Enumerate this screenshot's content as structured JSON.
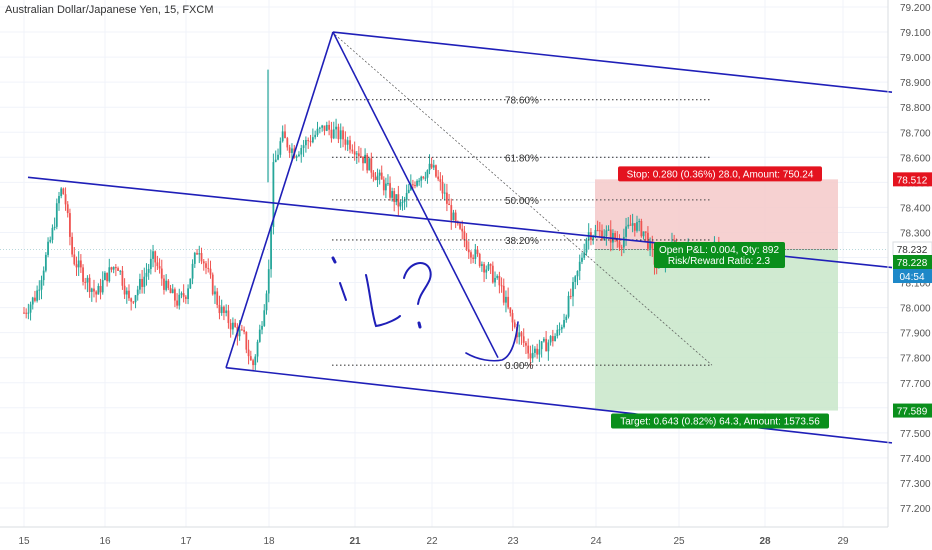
{
  "header": {
    "title": "Australian Dollar/Japanese Yen, 15, FXCM"
  },
  "colors": {
    "up": "#26a69a",
    "down": "#ef5350",
    "trend": "#1f1fb8",
    "stop_zone": "#f5c9c9",
    "target_zone": "#c8e6c9",
    "stop_badge": "#e4131f",
    "target_badge": "#0a8f1c",
    "price_badge": "#0a8f1c",
    "countdown_badge": "#1e88c8"
  },
  "chart_data": {
    "type": "candlestick",
    "title": "Australian Dollar/Japanese Yen, 15, FXCM",
    "xaxis": {
      "labels": [
        "15",
        "16",
        "17",
        "18",
        "21",
        "22",
        "23",
        "24",
        "25",
        "28",
        "29"
      ],
      "bold": [
        "21",
        "28"
      ]
    },
    "yaxis": {
      "labels": [
        "79.200",
        "79.100",
        "79.000",
        "78.900",
        "78.800",
        "78.700",
        "78.600",
        "78.500",
        "78.400",
        "78.300",
        "78.200",
        "78.100",
        "78.000",
        "77.900",
        "77.800",
        "77.700",
        "77.600",
        "77.500",
        "77.400",
        "77.300",
        "77.200"
      ],
      "range": [
        77.16,
        79.24
      ],
      "position": "right"
    },
    "price_path": [
      [
        15.0,
        77.98
      ],
      [
        15.15,
        78.05
      ],
      [
        15.35,
        78.3
      ],
      [
        15.45,
        78.47
      ],
      [
        15.5,
        78.45
      ],
      [
        15.6,
        78.2
      ],
      [
        15.75,
        78.12
      ],
      [
        15.9,
        78.05
      ],
      [
        16.0,
        78.12
      ],
      [
        16.15,
        78.18
      ],
      [
        16.3,
        78.02
      ],
      [
        16.45,
        78.1
      ],
      [
        16.6,
        78.2
      ],
      [
        16.75,
        78.08
      ],
      [
        16.9,
        78.02
      ],
      [
        17.0,
        78.06
      ],
      [
        17.15,
        78.25
      ],
      [
        17.25,
        78.15
      ],
      [
        17.4,
        78.0
      ],
      [
        17.55,
        77.93
      ],
      [
        17.7,
        77.88
      ],
      [
        17.8,
        77.76
      ],
      [
        17.9,
        77.92
      ],
      [
        18.0,
        78.15
      ],
      [
        18.05,
        78.55
      ],
      [
        18.15,
        78.68
      ],
      [
        18.3,
        78.62
      ],
      [
        18.5,
        78.68
      ],
      [
        18.65,
        78.72
      ],
      [
        18.85,
        78.68
      ],
      [
        19.0,
        78.64
      ],
      [
        19.15,
        78.58
      ],
      [
        19.4,
        78.48
      ],
      [
        19.6,
        78.4
      ],
      [
        19.8,
        78.52
      ],
      [
        20.0,
        78.56
      ],
      [
        20.15,
        78.45
      ],
      [
        20.3,
        78.32
      ],
      [
        20.5,
        78.22
      ],
      [
        20.7,
        78.15
      ],
      [
        20.85,
        78.08
      ],
      [
        21.0,
        77.93
      ],
      [
        21.2,
        77.82
      ],
      [
        21.35,
        77.84
      ],
      [
        21.55,
        77.9
      ],
      [
        21.75,
        78.1
      ],
      [
        21.9,
        78.3
      ],
      [
        22.1,
        78.3
      ],
      [
        22.3,
        78.26
      ],
      [
        22.45,
        78.34
      ],
      [
        22.6,
        78.3
      ],
      [
        22.75,
        78.16
      ],
      [
        22.95,
        78.24
      ],
      [
        23.1,
        78.22
      ],
      [
        23.3,
        78.25
      ]
    ],
    "range_days": [
      15,
      29
    ],
    "trend_lines": [
      {
        "from": [
          14.8,
          78.52
        ],
        "to": [
          29.6,
          78.16
        ]
      },
      {
        "from": [
          17.8,
          77.76
        ],
        "to": [
          29.6,
          77.47
        ]
      },
      {
        "from": [
          20.2,
          79.1
        ],
        "to": [
          29.6,
          78.86
        ]
      },
      {
        "from": [
          17.8,
          77.76
        ],
        "to": [
          20.2,
          79.1
        ]
      },
      {
        "from": [
          20.2,
          79.1
        ],
        "to": [
          22.9,
          77.8
        ]
      }
    ],
    "fibonacci": {
      "from": [
        20.2,
        79.1
      ],
      "to": [
        22.9,
        77.77
      ],
      "x_end": [
        24.5,
        25.4
      ],
      "levels": [
        {
          "label": "78.60%",
          "price": 78.83
        },
        {
          "label": "61.80%",
          "price": 78.6
        },
        {
          "label": "50.00%",
          "price": 78.43
        },
        {
          "label": "38.20%",
          "price": 78.27
        },
        {
          "label": "0.00%",
          "price": 77.77
        }
      ]
    },
    "position": {
      "entry": 78.232,
      "stop": 78.512,
      "target": 77.589,
      "x_range": [
        24.0,
        27.6
      ],
      "stop_label": "Stop: 0.280 (0.36%) 28.0, Amount: 750.24",
      "target_label": "Target: 0.643 (0.82%) 64.3, Amount: 1573.56",
      "pnl_label": "Open P&L: 0.004, Qty: 892",
      "rr_label": "Risk/Reward Ratio: 2.3"
    },
    "price_badges": [
      {
        "text": "78.512",
        "price": 78.512,
        "color": "stop"
      },
      {
        "text": "78.232",
        "price": 78.232,
        "color": "plain"
      },
      {
        "text": "78.228",
        "price": 78.228,
        "color": "price"
      },
      {
        "text": "04:54",
        "price": 78.085,
        "color": "countdown"
      },
      {
        "text": "77.589",
        "price": 77.589,
        "color": "target"
      }
    ],
    "annotation": "iL?"
  }
}
